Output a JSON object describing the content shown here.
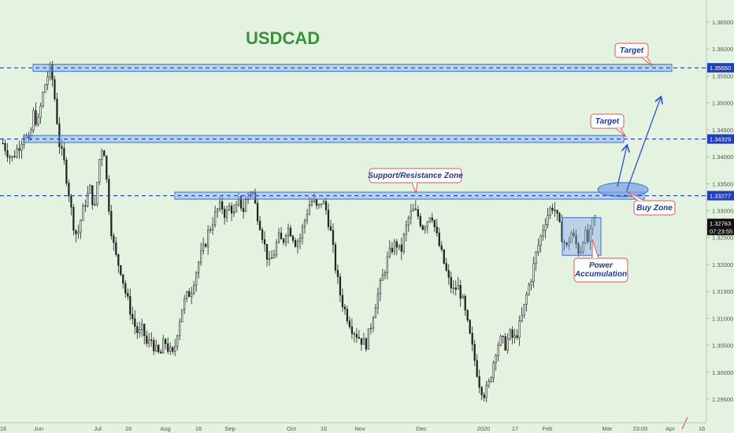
{
  "chart_data": {
    "type": "candlestick",
    "title": "USDCAD",
    "colors": {
      "background": "#e4f2e0",
      "candle": "#222222",
      "zone_fill": "#7aa6e6",
      "zone_stroke": "#3b6fd6",
      "level_line": "#1f3fbf",
      "callout_stroke": "#e05555",
      "arrow": "#2a52c9"
    },
    "ylim": [
      1.2925,
      1.3675
    ],
    "x_ticks": [
      "16",
      "Jun",
      "Jul",
      "16",
      "Aug",
      "16",
      "Sep",
      "Oct",
      "16",
      "Nov",
      "Dec",
      "2020",
      "17",
      "Feb",
      "Mar",
      "23:00",
      "Apr",
      "16"
    ],
    "y_ticks": [
      1.295,
      1.3,
      1.305,
      1.31,
      1.315,
      1.32,
      1.325,
      1.33,
      1.335,
      1.34,
      1.345,
      1.35,
      1.355,
      1.36,
      1.365
    ],
    "y_tick_labels": [
      "1.29500",
      "1.30000",
      "1.30500",
      "1.31000",
      "1.31500",
      "1.32000",
      "1.32500",
      "1.33000",
      "1.33500",
      "1.34000",
      "1.34500",
      "1.35000",
      "1.35500",
      "1.36000",
      "1.36500"
    ],
    "levels": [
      {
        "value": 1.3565,
        "label": "1.35650"
      },
      {
        "value": 1.34329,
        "label": "1.34329"
      },
      {
        "value": 1.33277,
        "label": "1.33277"
      }
    ],
    "current_price": {
      "value": 1.32763,
      "label": "1.32763",
      "countdown": "07:23:55"
    },
    "annotations": {
      "target_upper": "Target",
      "target_lower": "Target",
      "sr_zone": "Support/Resistance Zone",
      "buy_zone": "Buy Zone",
      "power_line1": "Power",
      "power_line2": "Accumulation"
    },
    "price_path": [
      [
        0,
        1.3425
      ],
      [
        2,
        1.3395
      ],
      [
        4,
        1.3425
      ],
      [
        5,
        1.3445
      ],
      [
        6,
        1.342
      ],
      [
        7,
        1.348
      ],
      [
        8,
        1.346
      ],
      [
        9,
        1.351
      ],
      [
        10,
        1.3545
      ],
      [
        11,
        1.3565
      ],
      [
        12,
        1.35
      ],
      [
        13,
        1.342
      ],
      [
        14,
        1.339
      ],
      [
        15,
        1.334
      ],
      [
        16,
        1.328
      ],
      [
        17,
        1.325
      ],
      [
        18,
        1.329
      ],
      [
        19,
        1.332
      ],
      [
        20,
        1.334
      ],
      [
        21,
        1.33
      ],
      [
        22,
        1.339
      ],
      [
        23,
        1.343
      ],
      [
        24,
        1.333
      ],
      [
        25,
        1.325
      ],
      [
        26,
        1.321
      ],
      [
        27,
        1.319
      ],
      [
        28,
        1.315
      ],
      [
        29,
        1.312
      ],
      [
        30,
        1.309
      ],
      [
        31,
        1.307
      ],
      [
        32,
        1.308
      ],
      [
        33,
        1.305
      ],
      [
        34,
        1.306
      ],
      [
        35,
        1.304
      ],
      [
        36,
        1.303
      ],
      [
        37,
        1.306
      ],
      [
        38,
        1.304
      ],
      [
        39,
        1.303
      ],
      [
        40,
        1.308
      ],
      [
        41,
        1.312
      ],
      [
        42,
        1.314
      ],
      [
        43,
        1.315
      ],
      [
        44,
        1.318
      ],
      [
        45,
        1.321
      ],
      [
        46,
        1.323
      ],
      [
        47,
        1.326
      ],
      [
        48,
        1.328
      ],
      [
        49,
        1.33
      ],
      [
        50,
        1.331
      ],
      [
        51,
        1.329
      ],
      [
        52,
        1.331
      ],
      [
        53,
        1.329
      ],
      [
        54,
        1.332
      ],
      [
        55,
        1.33
      ],
      [
        56,
        1.333
      ],
      [
        57,
        1.334
      ],
      [
        58,
        1.33
      ],
      [
        59,
        1.327
      ],
      [
        60,
        1.323
      ],
      [
        61,
        1.32
      ],
      [
        62,
        1.322
      ],
      [
        63,
        1.325
      ],
      [
        64,
        1.324
      ],
      [
        65,
        1.327
      ],
      [
        66,
        1.326
      ],
      [
        67,
        1.324
      ],
      [
        68,
        1.325
      ],
      [
        69,
        1.328
      ],
      [
        70,
        1.331
      ],
      [
        71,
        1.332
      ],
      [
        72,
        1.33
      ],
      [
        73,
        1.332
      ],
      [
        74,
        1.33
      ],
      [
        75,
        1.326
      ],
      [
        76,
        1.32
      ],
      [
        77,
        1.315
      ],
      [
        78,
        1.312
      ],
      [
        79,
        1.31
      ],
      [
        80,
        1.308
      ],
      [
        81,
        1.307
      ],
      [
        82,
        1.306
      ],
      [
        83,
        1.305
      ],
      [
        84,
        1.308
      ],
      [
        85,
        1.312
      ],
      [
        86,
        1.315
      ],
      [
        87,
        1.318
      ],
      [
        88,
        1.321
      ],
      [
        89,
        1.323
      ],
      [
        90,
        1.324
      ],
      [
        91,
        1.322
      ],
      [
        92,
        1.326
      ],
      [
        93,
        1.329
      ],
      [
        94,
        1.33
      ],
      [
        95,
        1.329
      ],
      [
        96,
        1.327
      ],
      [
        97,
        1.328
      ],
      [
        98,
        1.33
      ],
      [
        99,
        1.326
      ],
      [
        100,
        1.323
      ],
      [
        101,
        1.32
      ],
      [
        102,
        1.317
      ],
      [
        103,
        1.315
      ],
      [
        104,
        1.316
      ],
      [
        105,
        1.314
      ],
      [
        106,
        1.31
      ],
      [
        107,
        1.306
      ],
      [
        108,
        1.302
      ],
      [
        109,
        1.298
      ],
      [
        110,
        1.296
      ],
      [
        111,
        1.297
      ],
      [
        112,
        1.301
      ],
      [
        113,
        1.305
      ],
      [
        114,
        1.306
      ],
      [
        115,
        1.305
      ],
      [
        116,
        1.307
      ],
      [
        117,
        1.306
      ],
      [
        118,
        1.308
      ],
      [
        119,
        1.311
      ],
      [
        120,
        1.315
      ],
      [
        121,
        1.318
      ],
      [
        122,
        1.322
      ],
      [
        123,
        1.325
      ],
      [
        124,
        1.328
      ],
      [
        125,
        1.33
      ],
      [
        126,
        1.331
      ],
      [
        127,
        1.328
      ],
      [
        128,
        1.325
      ],
      [
        129,
        1.323
      ],
      [
        130,
        1.326
      ],
      [
        131,
        1.324
      ],
      [
        132,
        1.322
      ],
      [
        133,
        1.326
      ],
      [
        134,
        1.324
      ],
      [
        135,
        1.328
      ],
      [
        136,
        1.3295
      ]
    ]
  }
}
